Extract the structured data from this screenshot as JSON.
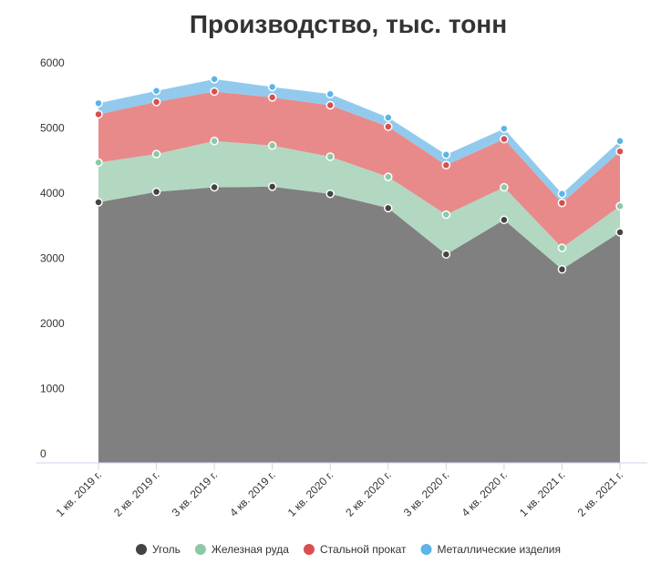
{
  "chart_data": {
    "type": "stacked-area",
    "title": "Производство, тыс. тонн",
    "categories": [
      "1 кв. 2019 г.",
      "2 кв. 2019 г.",
      "3 кв. 2019 г.",
      "4 кв. 2019 г.",
      "1 кв. 2020 г.",
      "2 кв. 2020 г.",
      "3 кв. 2020 г.",
      "4 кв. 2020 г.",
      "1 кв. 2021 г.",
      "2 кв. 2021 г."
    ],
    "series": [
      {
        "name": "Уголь",
        "color": "#808080",
        "point_color": "#444444",
        "values": [
          4000,
          4160,
          4230,
          4240,
          4130,
          3910,
          3200,
          3730,
          2970,
          3540
        ]
      },
      {
        "name": "Железная руда",
        "color": "#b2d8c2",
        "point_color": "#8cc8a8",
        "values": [
          610,
          580,
          710,
          630,
          570,
          480,
          610,
          500,
          330,
          400
        ]
      },
      {
        "name": "Стальной прокат",
        "color": "#e88a8a",
        "point_color": "#d94f4f",
        "values": [
          740,
          800,
          760,
          740,
          790,
          770,
          760,
          740,
          690,
          840
        ]
      },
      {
        "name": "Металлические изделия",
        "color": "#92caee",
        "point_color": "#5bb5e5",
        "values": [
          170,
          170,
          190,
          160,
          170,
          140,
          160,
          160,
          140,
          160
        ]
      }
    ],
    "ylim": [
      0,
      6000
    ],
    "yticks": [
      0,
      1000,
      2000,
      3000,
      4000,
      5000,
      6000
    ],
    "grid": false,
    "legend": "bottom"
  }
}
